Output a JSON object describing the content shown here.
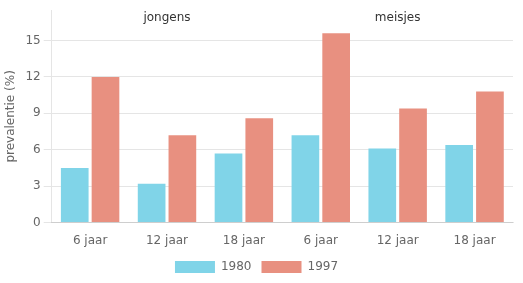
{
  "chart_data": {
    "type": "bar",
    "categories": [
      "6 jaar",
      "12 jaar",
      "18 jaar",
      "6 jaar",
      "12 jaar",
      "18 jaar"
    ],
    "series": [
      {
        "name": "1980",
        "color": "#80d4e8",
        "values": [
          4.5,
          3.2,
          5.7,
          7.2,
          6.1,
          6.4
        ]
      },
      {
        "name": "1997",
        "color": "#e89080",
        "values": [
          12.0,
          7.2,
          8.6,
          15.6,
          9.4,
          10.8
        ]
      }
    ],
    "ylabel": "prevalentie (%)",
    "ylim": [
      0,
      17.5
    ],
    "yticks": [
      0,
      3,
      6,
      9,
      12,
      15
    ],
    "grid": true,
    "legend": "bottom",
    "annotations": [
      {
        "text": "jongens"
      },
      {
        "text": "meisjes"
      }
    ]
  }
}
